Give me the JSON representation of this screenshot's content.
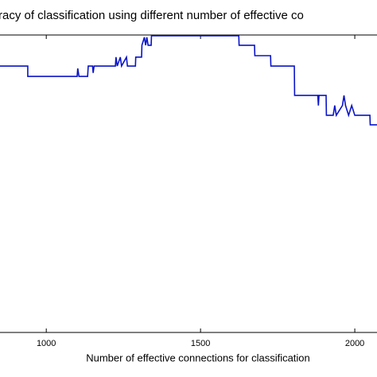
{
  "chart_data": {
    "type": "line",
    "title": "racy of classification using different number of effective co",
    "x_label": "Number of effective connections for classification",
    "xlim": [
      850,
      2072
    ],
    "xticks": [
      1000,
      1500,
      2000
    ],
    "ylim": [
      0,
      1
    ],
    "series": [
      {
        "color": "#0a14c8",
        "x": [
          850,
          940,
          940,
          1100,
          1102,
          1106,
          1134,
          1136,
          1150,
          1152,
          1155,
          1224,
          1226,
          1230,
          1240,
          1244,
          1260,
          1263,
          1289,
          1290,
          1309,
          1310,
          1318,
          1322,
          1326,
          1330,
          1340,
          1341,
          1624,
          1625,
          1675,
          1676,
          1727,
          1728,
          1804,
          1805,
          1880,
          1882,
          1884,
          1907,
          1908,
          1930,
          1935,
          1940,
          1960,
          1965,
          1970,
          1980,
          1990,
          2000,
          2049,
          2050,
          2072
        ],
        "values": [
          0.898,
          0.898,
          0.863,
          0.863,
          0.89,
          0.863,
          0.863,
          0.898,
          0.898,
          0.875,
          0.898,
          0.898,
          0.928,
          0.898,
          0.928,
          0.898,
          0.928,
          0.898,
          0.898,
          0.928,
          0.928,
          0.968,
          0.995,
          0.968,
          0.995,
          0.968,
          0.968,
          1.0,
          1.0,
          0.968,
          0.968,
          0.933,
          0.933,
          0.898,
          0.898,
          0.799,
          0.799,
          0.765,
          0.799,
          0.799,
          0.732,
          0.732,
          0.765,
          0.732,
          0.765,
          0.799,
          0.765,
          0.732,
          0.765,
          0.732,
          0.732,
          0.7,
          0.7
        ]
      }
    ]
  }
}
